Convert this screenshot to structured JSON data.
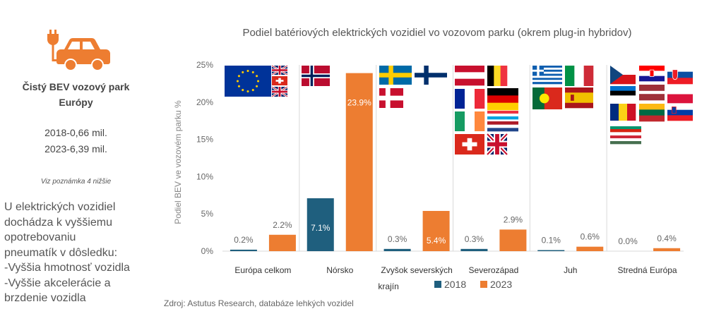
{
  "sidebar": {
    "icon": "electric-car-plug-icon",
    "icon_color": "#ED7D31",
    "title_line1": "Čistý BEV vozový park",
    "title_line2": "Európy",
    "stat_2018": "2018-0,66 mil.",
    "stat_2023": "2023-6,39 mil.",
    "note": "Viz poznámka 4 nižšie",
    "text_lines": [
      "U elektrických vozidiel",
      "dochádza k vyššiemu",
      "opotrebovaniu",
      "pneumatík v dôsledku:",
      "-Vyššia hmotnosť vozidla",
      "-Vyššie akcelerácie a",
      "brzdenie vozidla"
    ]
  },
  "source": "Zdroj: Astutus Research, databáze lehkých vozidel",
  "chart_data": {
    "type": "bar",
    "title": "Podiel batériových elektrických vozidiel vo vozovom parku (okrem plug-in hybridov)",
    "ylabel": "Podiel BEV ve vozovém parku %",
    "xlabel": "",
    "ylim": [
      0,
      25
    ],
    "yticks": [
      0,
      5,
      10,
      15,
      20,
      25
    ],
    "ytick_labels": [
      "0%",
      "5%",
      "10%",
      "15%",
      "20%",
      "25%"
    ],
    "grid": false,
    "legend_position": "bottom",
    "categories": [
      {
        "line1": "Európa celkom",
        "line2": ""
      },
      {
        "line1": "Nórsko",
        "line2": ""
      },
      {
        "line1": "Zvyšok severských",
        "line2": "krajín"
      },
      {
        "line1": "Severozápad",
        "line2": ""
      },
      {
        "line1": "Juh",
        "line2": ""
      },
      {
        "line1": "Stredná Európa",
        "line2": ""
      }
    ],
    "series": [
      {
        "name": "2018",
        "color": "#1F5F7E",
        "values": [
          0.2,
          7.1,
          0.3,
          0.3,
          0.1,
          0.0
        ],
        "labels": [
          "0.2%",
          "7.1%",
          "0.3%",
          "0.3%",
          "0.1%",
          "0.0%"
        ]
      },
      {
        "name": "2023",
        "color": "#ED7D31",
        "values": [
          2.2,
          23.9,
          5.4,
          2.9,
          0.6,
          0.4
        ],
        "labels": [
          "2.2%",
          "23.9%",
          "5.4%",
          "2.9%",
          "0.6%",
          "0.4%"
        ]
      }
    ],
    "flag_groups": [
      [
        "eu",
        "uk",
        "ch",
        "gb"
      ],
      [
        "no"
      ],
      [
        "se",
        "fi",
        "dk"
      ],
      [
        "at",
        "be",
        "fr",
        "de",
        "ie",
        "lu",
        "nl",
        "ch",
        "gb"
      ],
      [
        "gr",
        "it",
        "pt",
        "es"
      ],
      [
        "cz",
        "hr",
        "sk",
        "ee",
        "lv",
        "pl",
        "ro",
        "lt",
        "si",
        "bg",
        "hu"
      ]
    ]
  }
}
